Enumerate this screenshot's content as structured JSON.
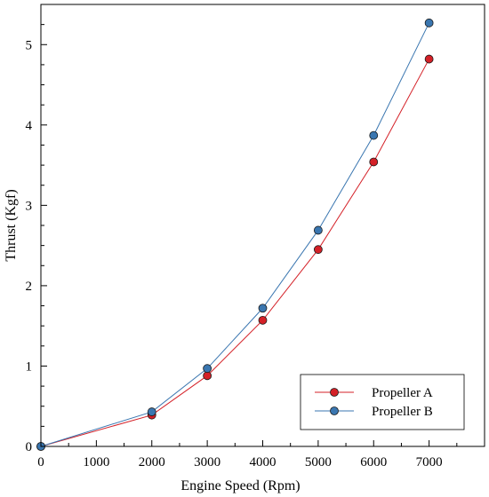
{
  "chart_data": {
    "type": "line",
    "xlabel": "Engine Speed (Rpm)",
    "ylabel": "Thrust (Kgf)",
    "xlim": [
      0,
      8000
    ],
    "ylim": [
      0,
      5.5
    ],
    "xticks": [
      0,
      1000,
      2000,
      3000,
      4000,
      5000,
      6000,
      7000
    ],
    "yticks": [
      0,
      1,
      2,
      3,
      4,
      5
    ],
    "grid": false,
    "legend_position": "bottom-right",
    "series": [
      {
        "name": "Propeller A",
        "color": "#d42027",
        "x": [
          0,
          2000,
          3000,
          4000,
          5000,
          6000,
          7000
        ],
        "y": [
          0,
          0.39,
          0.88,
          1.57,
          2.45,
          3.54,
          4.82
        ]
      },
      {
        "name": "Propeller B",
        "color": "#3a76b0",
        "x": [
          0,
          2000,
          3000,
          4000,
          5000,
          6000,
          7000
        ],
        "y": [
          0,
          0.43,
          0.97,
          1.72,
          2.69,
          3.87,
          5.27
        ]
      }
    ]
  }
}
